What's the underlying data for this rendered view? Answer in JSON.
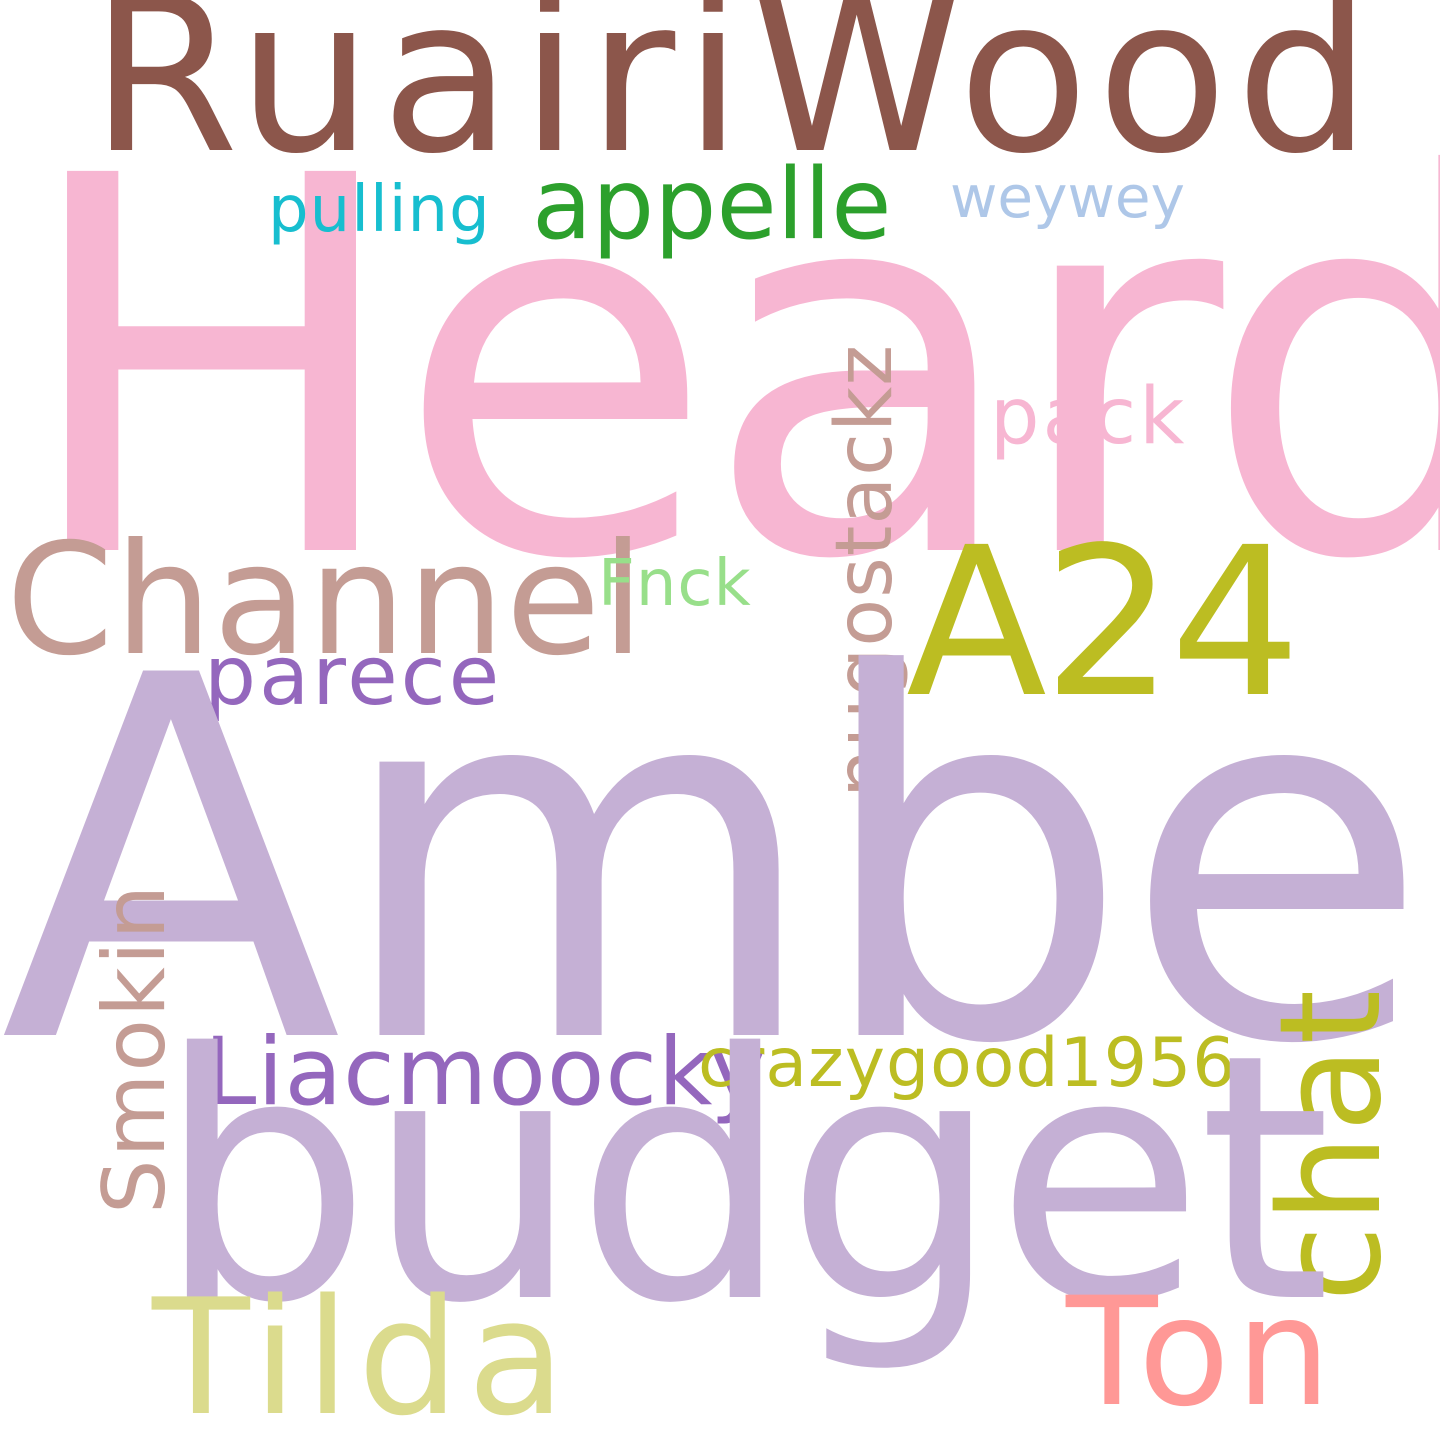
{
  "words": [
    {
      "id": "ruairiwood",
      "text": "RuairiWood",
      "color": "#8c564b"
    },
    {
      "id": "heard",
      "text": "Heard",
      "color": "#f7b6d2"
    },
    {
      "id": "appelle",
      "text": "appelle",
      "color": "#2ca02c"
    },
    {
      "id": "pulling",
      "text": "pulling",
      "color": "#17becf"
    },
    {
      "id": "weywey",
      "text": "weywey",
      "color": "#aec7e8"
    },
    {
      "id": "pack",
      "text": "pack",
      "color": "#f7b6d2"
    },
    {
      "id": "nugostackz",
      "text": "nugostackz",
      "color": "#c49c94"
    },
    {
      "id": "channel",
      "text": "Channel",
      "color": "#c49c94"
    },
    {
      "id": "a24",
      "text": "A24",
      "color": "#bcbd22"
    },
    {
      "id": "fnck",
      "text": "Fnck",
      "color": "#98df8a"
    },
    {
      "id": "parece",
      "text": "parece",
      "color": "#9467bd"
    },
    {
      "id": "amber",
      "text": "Amber",
      "color": "#c5b0d5"
    },
    {
      "id": "smokin",
      "text": "Smokin",
      "color": "#c49c94"
    },
    {
      "id": "chat",
      "text": "chat",
      "color": "#bcbd22"
    },
    {
      "id": "liacmoocky",
      "text": "Liacmoocky",
      "color": "#9467bd"
    },
    {
      "id": "crazygood1956",
      "text": "crazygood1956",
      "color": "#bcbd22"
    },
    {
      "id": "budget",
      "text": "budget",
      "color": "#c5b0d5"
    },
    {
      "id": "tilda",
      "text": "Tilda",
      "color": "#dbdb8d"
    },
    {
      "id": "ton",
      "text": "Ton",
      "color": "#ff9896"
    }
  ]
}
